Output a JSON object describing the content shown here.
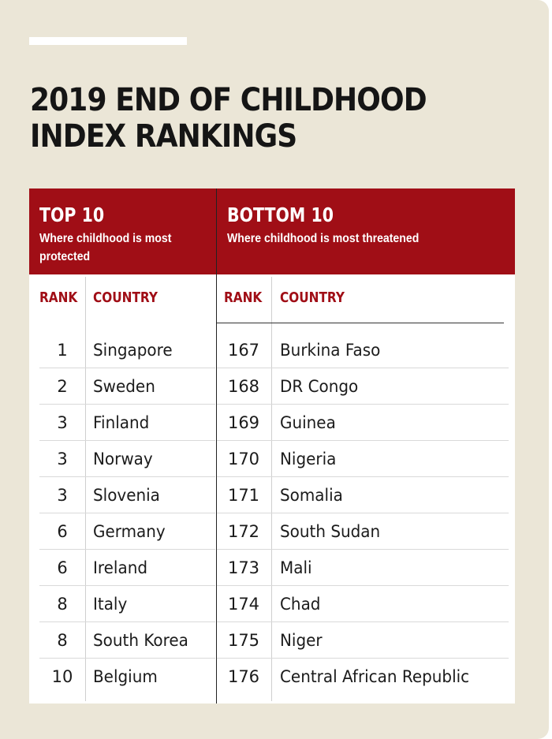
{
  "title": "2019 END OF CHILDHOOD INDEX RANKINGS",
  "top": {
    "heading": "TOP 10",
    "subheading": "Where childhood is most protected",
    "rank_label": "RANK",
    "country_label": "COUNTRY",
    "rows": [
      {
        "rank": "1",
        "country": "Singapore"
      },
      {
        "rank": "2",
        "country": "Sweden"
      },
      {
        "rank": "3",
        "country": "Finland"
      },
      {
        "rank": "3",
        "country": "Norway"
      },
      {
        "rank": "3",
        "country": "Slovenia"
      },
      {
        "rank": "6",
        "country": "Germany"
      },
      {
        "rank": "6",
        "country": "Ireland"
      },
      {
        "rank": "8",
        "country": "Italy"
      },
      {
        "rank": "8",
        "country": "South Korea"
      },
      {
        "rank": "10",
        "country": "Belgium"
      }
    ]
  },
  "bottom": {
    "heading": "BOTTOM 10",
    "subheading": "Where childhood is most threatened",
    "rank_label": "RANK",
    "country_label": "COUNTRY",
    "rows": [
      {
        "rank": "167",
        "country": "Burkina Faso"
      },
      {
        "rank": "168",
        "country": "DR Congo"
      },
      {
        "rank": "169",
        "country": "Guinea"
      },
      {
        "rank": "170",
        "country": "Nigeria"
      },
      {
        "rank": "171",
        "country": "Somalia"
      },
      {
        "rank": "172",
        "country": "South Sudan"
      },
      {
        "rank": "173",
        "country": "Mali"
      },
      {
        "rank": "174",
        "country": "Chad"
      },
      {
        "rank": "175",
        "country": "Niger"
      },
      {
        "rank": "176",
        "country": "Central African Republic"
      }
    ]
  },
  "colors": {
    "background": "#ebe6d7",
    "header": "#a00e16",
    "accent_text": "#a00e16"
  }
}
